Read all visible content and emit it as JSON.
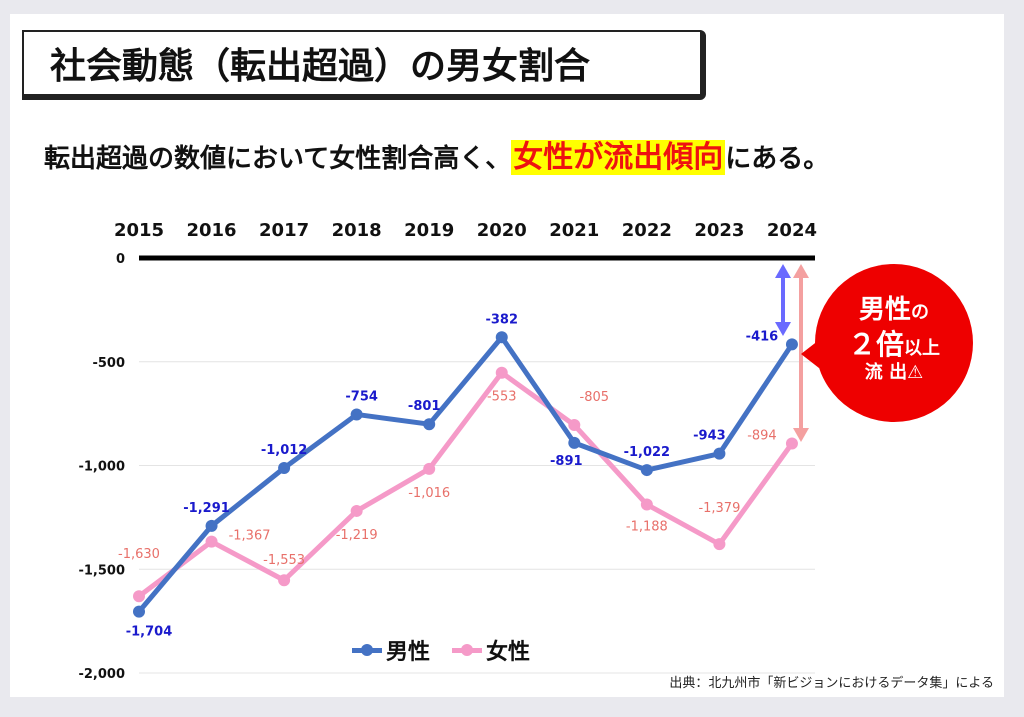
{
  "title": "社会動態（転出超過）の男女割合",
  "subtitle": {
    "before": "転出超過の数値において女性割合高く、",
    "highlight": "女性が流出傾向",
    "after": "にある。"
  },
  "callout": {
    "line1_big": "男性",
    "line1_small": "の",
    "line2_big": "２倍",
    "line2_small": "以上",
    "line3": "流 出⚠"
  },
  "source": "出典：北九州市「新ビジョンにおけるデータ集」による",
  "colors": {
    "male": "#4472c4",
    "female": "#f59ac8",
    "male_label": "#1a1acc",
    "female_label": "#e8706a",
    "accent": "#ee0000",
    "highlight": "#ffff00"
  },
  "chart_data": {
    "type": "line",
    "categories": [
      "2015",
      "2016",
      "2017",
      "2018",
      "2019",
      "2020",
      "2021",
      "2022",
      "2023",
      "2024"
    ],
    "series": [
      {
        "name": "男性",
        "values": [
          -1704,
          -1291,
          -1012,
          -754,
          -801,
          -382,
          -891,
          -1022,
          -943,
          -416
        ]
      },
      {
        "name": "女性",
        "values": [
          -1630,
          -1367,
          -1553,
          -1219,
          -1016,
          -553,
          -805,
          -1188,
          -1379,
          -894
        ]
      }
    ],
    "yticks": [
      "0",
      "-500",
      "-1,000",
      "-1,500",
      "-2,000"
    ],
    "ylim": [
      -2000,
      0
    ],
    "xaxis_position": "top",
    "legend": "bottom-center",
    "data_labels": true
  }
}
